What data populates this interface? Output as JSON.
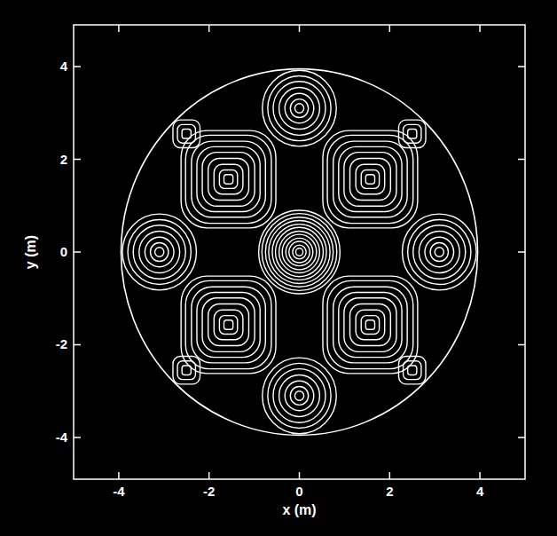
{
  "chart_data": {
    "type": "contour",
    "x_label": "x (m)",
    "y_label": "y (m)",
    "xlim": [
      -5,
      5
    ],
    "ylim": [
      -4.9,
      4.9
    ],
    "xticks": [
      -4,
      -2,
      0,
      2,
      4
    ],
    "yticks": [
      -4,
      -2,
      0,
      2,
      4
    ],
    "color": "#ffffff",
    "boundary_radius": 3.95,
    "peaks": [
      {
        "x": 0,
        "y": 0,
        "levels": [
          0.08,
          0.15,
          0.23,
          0.3,
          0.38,
          0.45,
          0.53,
          0.6,
          0.68,
          0.75,
          0.83,
          0.9
        ]
      },
      {
        "x": 1.57,
        "y": 1.57,
        "levels": [
          0.1,
          0.2,
          0.32,
          0.45,
          0.58,
          0.7,
          0.82,
          0.95,
          1.05
        ]
      },
      {
        "x": -1.57,
        "y": 1.57,
        "levels": [
          0.1,
          0.2,
          0.32,
          0.45,
          0.58,
          0.7,
          0.82,
          0.95,
          1.05
        ]
      },
      {
        "x": 1.57,
        "y": -1.57,
        "levels": [
          0.1,
          0.2,
          0.32,
          0.45,
          0.58,
          0.7,
          0.82,
          0.95,
          1.05
        ]
      },
      {
        "x": -1.57,
        "y": -1.57,
        "levels": [
          0.1,
          0.2,
          0.32,
          0.45,
          0.58,
          0.7,
          0.82,
          0.95,
          1.05
        ]
      },
      {
        "x": 0,
        "y": 3.1,
        "levels": [
          0.1,
          0.2,
          0.32,
          0.45,
          0.58,
          0.7,
          0.82
        ]
      },
      {
        "x": 0,
        "y": -3.1,
        "levels": [
          0.1,
          0.2,
          0.32,
          0.45,
          0.58,
          0.7,
          0.82
        ]
      },
      {
        "x": 3.1,
        "y": 0,
        "levels": [
          0.1,
          0.2,
          0.32,
          0.45,
          0.58,
          0.7,
          0.82
        ]
      },
      {
        "x": -3.1,
        "y": 0,
        "levels": [
          0.1,
          0.2,
          0.32,
          0.45,
          0.58,
          0.7,
          0.82
        ]
      },
      {
        "x": 2.5,
        "y": 2.55,
        "levels": [
          0.1,
          0.2,
          0.3
        ]
      },
      {
        "x": -2.5,
        "y": 2.55,
        "levels": [
          0.1,
          0.2,
          0.3
        ]
      },
      {
        "x": 2.5,
        "y": -2.55,
        "levels": [
          0.1,
          0.2,
          0.3
        ]
      },
      {
        "x": -2.5,
        "y": -2.55,
        "levels": [
          0.1,
          0.2,
          0.3
        ]
      }
    ]
  }
}
